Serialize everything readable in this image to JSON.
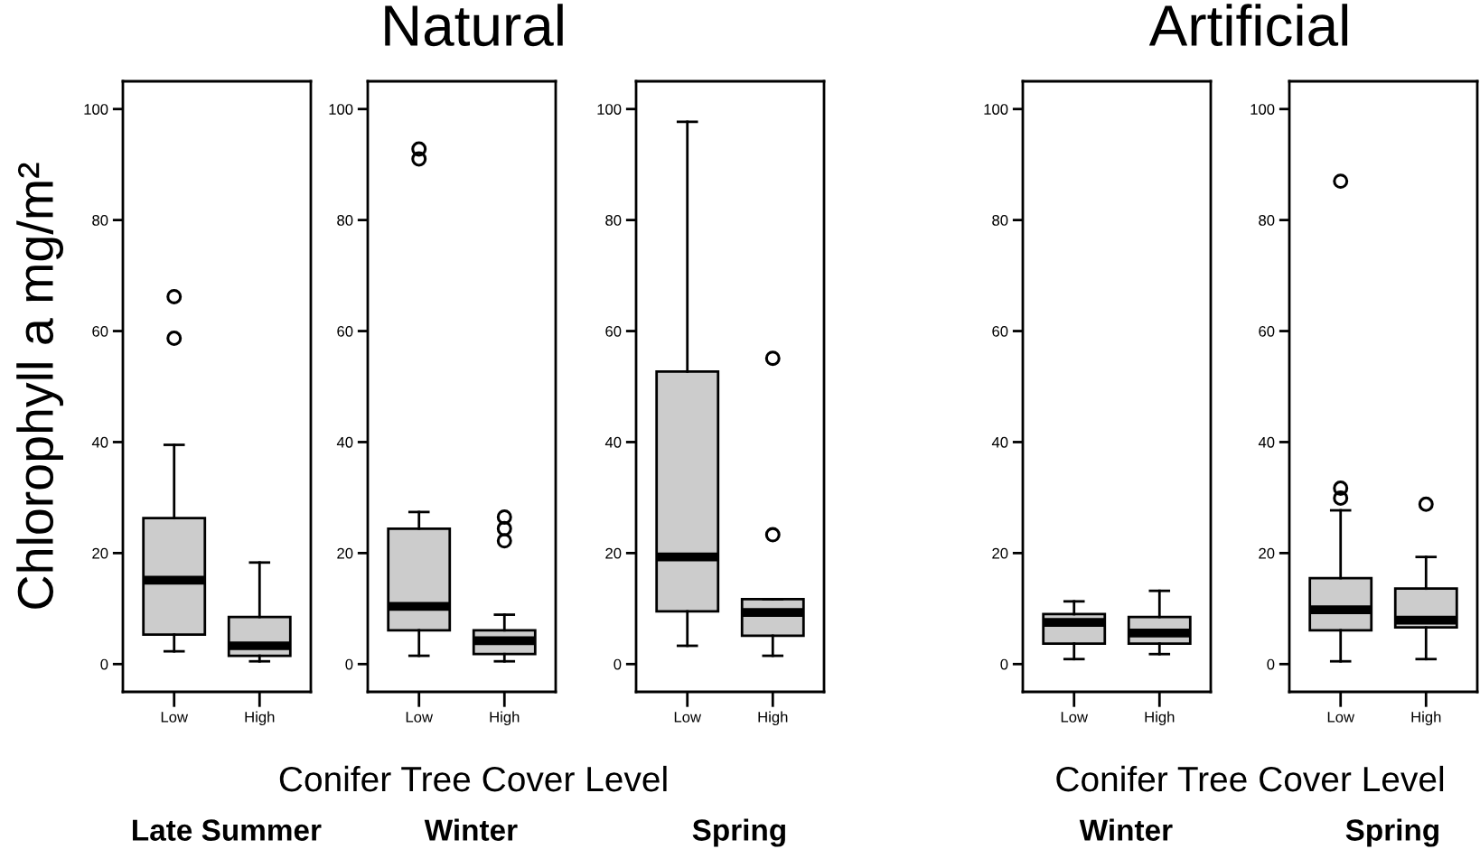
{
  "chart_data": [
    {
      "type": "box",
      "xlabel": "Conifer Tree Cover Level",
      "ylabel": "Chlorophyll a mg/m²",
      "subtitle": "Late Summer",
      "categories": [
        "Low",
        "High"
      ],
      "color": "#cccccc",
      "ylim": [
        -5,
        105
      ],
      "yticks": [
        0,
        20,
        40,
        60,
        80,
        100
      ],
      "grid": false,
      "boxes": [
        {
          "low": 2.3,
          "q1": 5.3,
          "median": 15.1,
          "q3": 26.3,
          "high": 39.5,
          "outliers": [
            58.7,
            66.2
          ]
        },
        {
          "low": 0.5,
          "q1": 1.5,
          "median": 3.3,
          "q3": 8.5,
          "high": 18.3
        }
      ]
    },
    {
      "type": "box",
      "title": "Natural",
      "subtitle": "Winter",
      "categories": [
        "Low",
        "High"
      ],
      "color": "#cccccc",
      "ylim": [
        -5,
        105
      ],
      "yticks": [
        0,
        20,
        40,
        60,
        80,
        100
      ],
      "grid": false,
      "boxes": [
        {
          "low": 1.5,
          "q1": 6.1,
          "median": 10.4,
          "q3": 24.4,
          "high": 27.4,
          "outliers": [
            91.0,
            92.8
          ]
        },
        {
          "low": 0.5,
          "q1": 1.8,
          "median": 4.2,
          "q3": 6.1,
          "high": 8.9,
          "outliers": [
            22.2,
            24.4,
            26.5
          ]
        }
      ]
    },
    {
      "type": "box",
      "subtitle": "Spring",
      "categories": [
        "Low",
        "High"
      ],
      "color": "#cccccc",
      "ylim": [
        -5,
        105
      ],
      "yticks": [
        0,
        20,
        40,
        60,
        80,
        100
      ],
      "grid": false,
      "boxes": [
        {
          "low": 3.3,
          "q1": 9.5,
          "median": 19.3,
          "q3": 52.7,
          "high": 97.7
        },
        {
          "low": 1.5,
          "q1": 5.1,
          "median": 9.3,
          "q3": 11.7,
          "high": 11.7,
          "outliers": [
            23.3,
            55.1
          ]
        }
      ]
    },
    {
      "type": "box",
      "title": "Artificial",
      "xlabel": "Conifer Tree Cover Level",
      "subtitle": "Winter",
      "categories": [
        "Low",
        "High"
      ],
      "color": "#cccccc",
      "ylim": [
        -5,
        105
      ],
      "yticks": [
        0,
        20,
        40,
        60,
        80,
        100
      ],
      "grid": false,
      "boxes": [
        {
          "low": 0.9,
          "q1": 3.7,
          "median": 7.5,
          "q3": 9.0,
          "high": 11.3
        },
        {
          "low": 1.8,
          "q1": 3.7,
          "median": 5.6,
          "q3": 8.5,
          "high": 13.2
        }
      ]
    },
    {
      "type": "box",
      "subtitle": "Spring",
      "categories": [
        "Low",
        "High"
      ],
      "color": "#cccccc",
      "ylim": [
        -5,
        105
      ],
      "yticks": [
        0,
        20,
        40,
        60,
        80,
        100
      ],
      "grid": false,
      "boxes": [
        {
          "low": 0.5,
          "q1": 6.1,
          "median": 9.8,
          "q3": 15.5,
          "high": 27.7,
          "outliers": [
            29.9,
            31.7,
            87.0
          ]
        },
        {
          "low": 0.9,
          "q1": 6.6,
          "median": 7.9,
          "q3": 13.6,
          "high": 19.3,
          "outliers": [
            28.8
          ]
        }
      ]
    }
  ]
}
